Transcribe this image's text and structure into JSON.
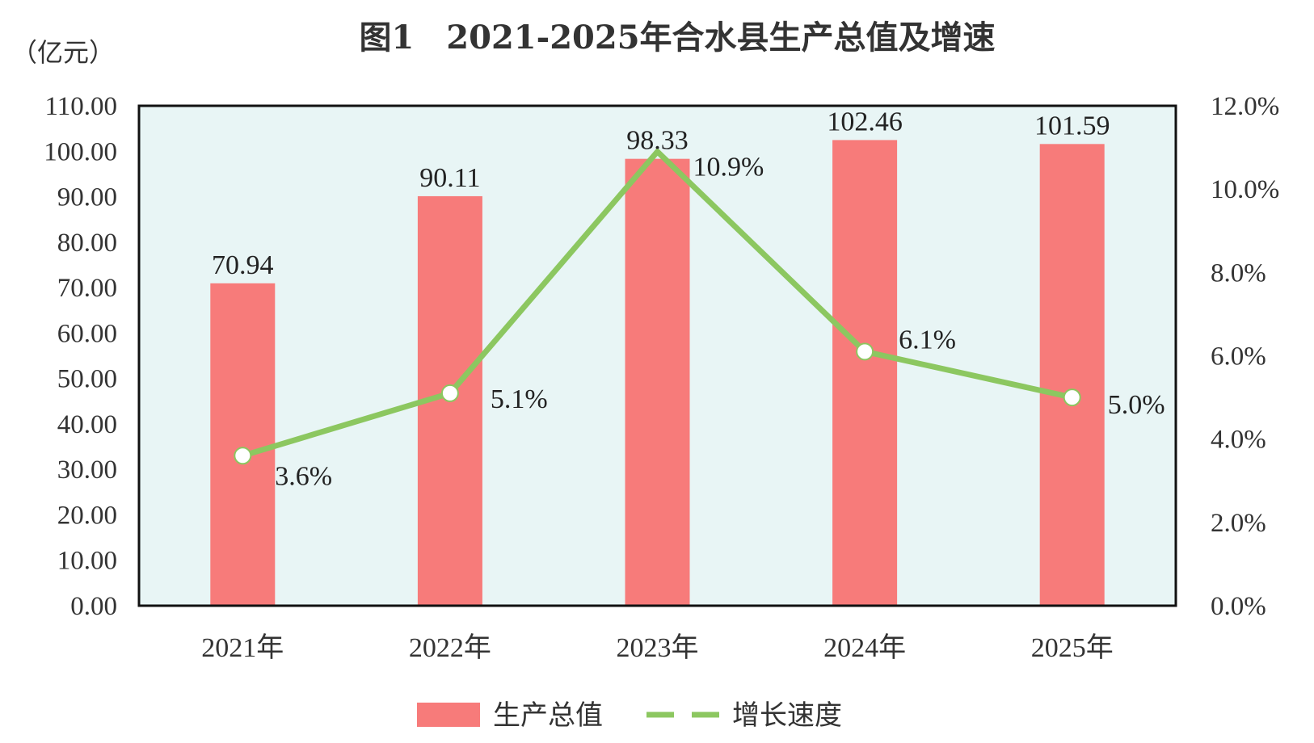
{
  "chart_data": {
    "type": "bar",
    "title": "图1　2021-2025年合水县生产总值及增速",
    "y_unit": "（亿元）",
    "categories": [
      "2021年",
      "2022年",
      "2023年",
      "2024年",
      "2025年"
    ],
    "series": [
      {
        "name": "生产总值",
        "type": "bar",
        "axis": "left",
        "values": [
          70.94,
          90.11,
          98.33,
          102.46,
          101.59
        ],
        "labels": [
          "70.94",
          "90.11",
          "98.33",
          "102.46",
          "101.59"
        ],
        "color": "#f77b7a"
      },
      {
        "name": "增长速度",
        "type": "line",
        "axis": "right",
        "values": [
          3.6,
          5.1,
          10.9,
          6.1,
          5.0
        ],
        "labels": [
          "3.6%",
          "5.1%",
          "10.9%",
          "6.1%",
          "5.0%"
        ],
        "color": "#8cc760"
      }
    ],
    "y_left": {
      "min": 0,
      "max": 110,
      "ticks": [
        "0.00",
        "10.00",
        "20.00",
        "30.00",
        "40.00",
        "50.00",
        "60.00",
        "70.00",
        "80.00",
        "90.00",
        "100.00",
        "110.00"
      ]
    },
    "y_right": {
      "min": 0,
      "max": 12,
      "ticks": [
        "0.0%",
        "2.0%",
        "4.0%",
        "6.0%",
        "8.0%",
        "10.0%",
        "12.0%"
      ]
    },
    "plot_background": "#e8f5f5",
    "grid": false,
    "legend_position": "bottom"
  }
}
